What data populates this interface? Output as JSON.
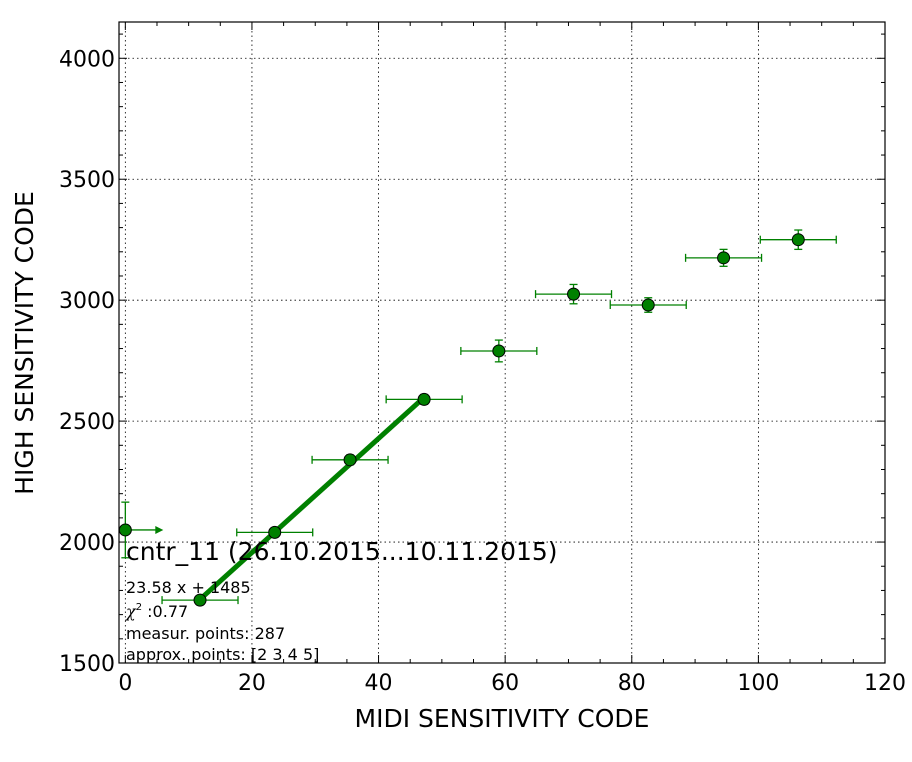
{
  "chart_data": {
    "type": "scatter",
    "xlabel": "MIDI SENSITIVITY CODE",
    "ylabel": "HIGH SENSITIVITY CODE",
    "xlim": [
      -1,
      120
    ],
    "ylim": [
      1500,
      4150
    ],
    "xticks": [
      0,
      20,
      40,
      60,
      80,
      100,
      120
    ],
    "yticks": [
      1500,
      2000,
      2500,
      3000,
      3500,
      4000
    ],
    "grid": true,
    "color": "#008000",
    "points": [
      {
        "x": 0.0,
        "y": 2050,
        "xerr": 0,
        "yerr": 115
      },
      {
        "x": 11.8,
        "y": 1760,
        "xerr": 6.0,
        "yerr": 0
      },
      {
        "x": 23.6,
        "y": 2040,
        "xerr": 6.0,
        "yerr": 10
      },
      {
        "x": 35.5,
        "y": 2340,
        "xerr": 6.0,
        "yerr": 20
      },
      {
        "x": 47.2,
        "y": 2590,
        "xerr": 6.0,
        "yerr": 20
      },
      {
        "x": 59.0,
        "y": 2790,
        "xerr": 6.0,
        "yerr": 45
      },
      {
        "x": 70.8,
        "y": 3025,
        "xerr": 6.0,
        "yerr": 40
      },
      {
        "x": 82.6,
        "y": 2980,
        "xerr": 6.0,
        "yerr": 30
      },
      {
        "x": 94.5,
        "y": 3175,
        "xerr": 6.0,
        "yerr": 35
      },
      {
        "x": 106.3,
        "y": 3250,
        "xerr": 6.0,
        "yerr": 40
      }
    ],
    "arrow": {
      "x_from": 0,
      "x_to": 6,
      "y": 2050
    },
    "fit": {
      "slope": 23.58,
      "intercept": 1485,
      "x_range": [
        11.8,
        47.2
      ]
    },
    "annotations": {
      "title": "cntr_11 (26.10.2015...10.11.2015)",
      "equation": "23.58 x + 1485",
      "chi_symbol": "χ",
      "chi_sup": "2",
      "chi_value": " :0.77",
      "measur": "measur. points: 287",
      "approx": "approx. points: [2 3 4 5]"
    }
  }
}
